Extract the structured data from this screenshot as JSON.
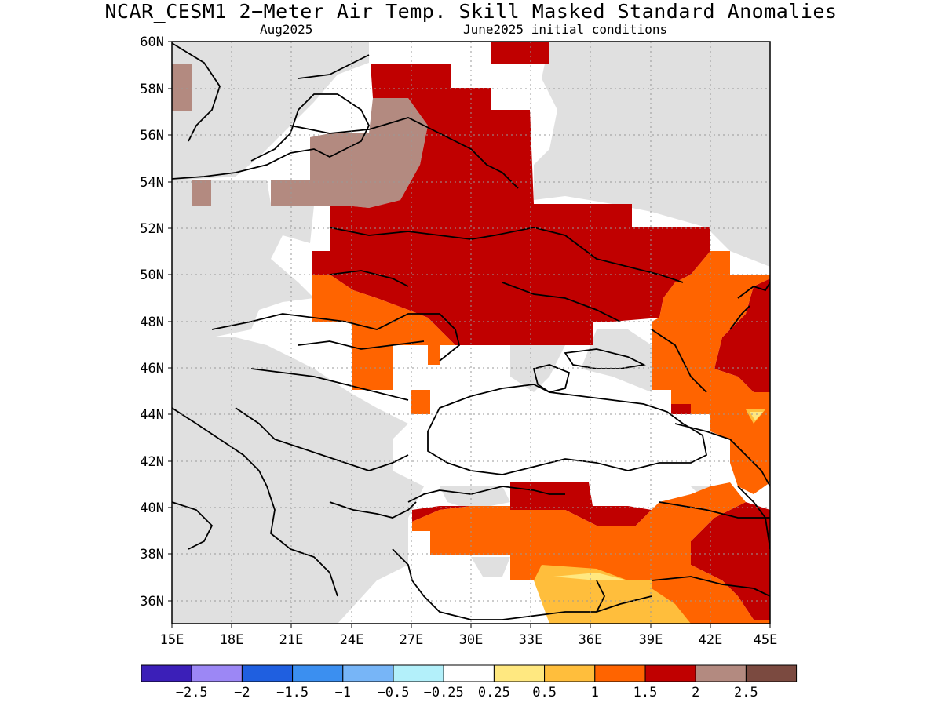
{
  "title": "NCAR_CESM1 2−Meter Air Temp. Skill Masked Standard Anomalies",
  "subtitle_left": "Aug2025",
  "subtitle_right": "June2025 initial conditions",
  "lat_labels": [
    "60N",
    "58N",
    "56N",
    "54N",
    "52N",
    "50N",
    "48N",
    "46N",
    "44N",
    "42N",
    "40N",
    "38N",
    "36N"
  ],
  "lon_labels": [
    "15E",
    "18E",
    "21E",
    "24E",
    "27E",
    "30E",
    "33E",
    "36E",
    "39E",
    "42E",
    "45E"
  ],
  "legend": {
    "colors": [
      "#3b1fb8",
      "#9c87f5",
      "#1f5fe0",
      "#3b8ff0",
      "#77b5f7",
      "#b3f0fa",
      "#ffffff",
      "#ffe880",
      "#ffbe3c",
      "#ff6400",
      "#c00000",
      "#b38a80",
      "#7b4a40"
    ],
    "labels": [
      "−2.5",
      "−2",
      "−1.5",
      "−1",
      "−0.5",
      "−0.25",
      "0.25",
      "0.5",
      "1",
      "1.5",
      "2",
      "2.5"
    ]
  },
  "colors": {
    "masked": "#e0e0e0",
    "anom_1": "#ffbe3c",
    "anom_15": "#ff6400",
    "anom_2": "#c00000",
    "anom_25": "#b38a80",
    "anom_05": "#ffe880"
  },
  "map_data": {
    "lon_range": [
      15,
      45
    ],
    "lat_range": [
      35,
      60
    ],
    "grid": "dotted every 3 deg lon / 2 deg lat",
    "variable": "2-Meter Air Temp. standard anomaly (skill masked)"
  }
}
